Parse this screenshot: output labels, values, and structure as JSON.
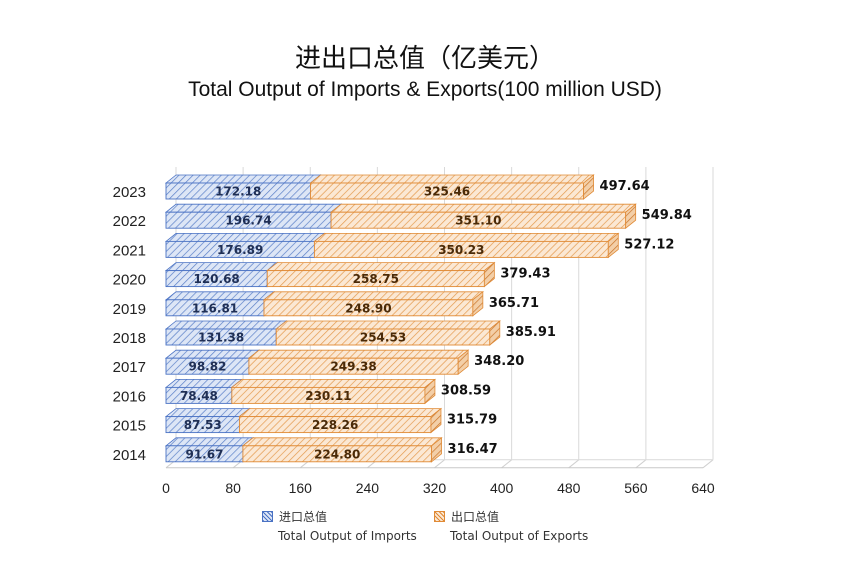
{
  "title_zh": "进出口总值（亿美元）",
  "title_en": "Total Output of Imports & Exports(100 million USD)",
  "chart_data": {
    "type": "bar",
    "orientation": "horizontal",
    "stacked": true,
    "style": "3d-hatched",
    "categories": [
      "2014",
      "2015",
      "2016",
      "2017",
      "2018",
      "2019",
      "2020",
      "2021",
      "2022",
      "2023"
    ],
    "series": [
      {
        "name_zh": "进口总值",
        "name": "Total Output of Imports",
        "color": "#4a72c4",
        "fill": "#dbe5f6",
        "values": [
          91.67,
          87.53,
          78.48,
          98.82,
          131.38,
          116.81,
          120.68,
          176.89,
          196.74,
          172.18
        ]
      },
      {
        "name_zh": "出口总值",
        "name": "Total Output of Exports",
        "color": "#e08a35",
        "fill": "#fbe6cf",
        "values": [
          224.8,
          228.26,
          230.11,
          249.38,
          254.53,
          248.9,
          258.75,
          350.23,
          351.1,
          325.46
        ]
      }
    ],
    "totals": [
      316.47,
      315.79,
      308.59,
      348.2,
      385.91,
      365.71,
      379.43,
      527.12,
      549.84,
      497.64
    ],
    "xlim": [
      0,
      640
    ],
    "xticks": [
      0,
      80,
      160,
      240,
      320,
      400,
      480,
      560,
      640
    ],
    "grid": true,
    "legend_position": "bottom"
  }
}
